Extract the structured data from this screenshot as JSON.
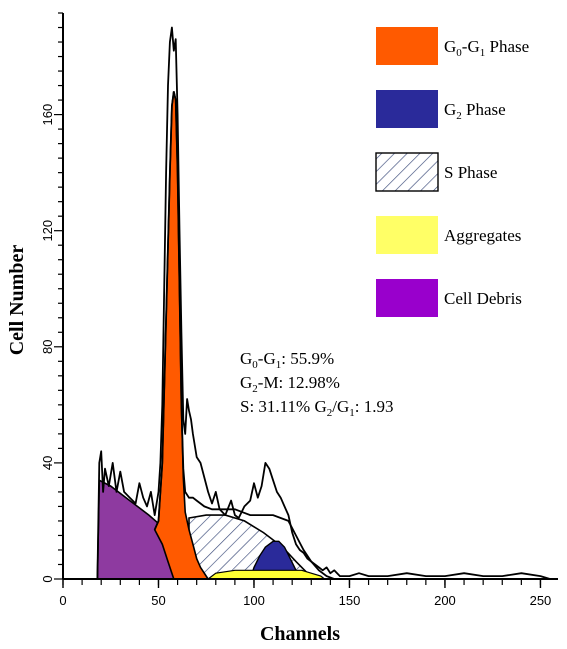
{
  "chart_data": {
    "type": "area",
    "xlabel": "Channels",
    "ylabel": "Cell Number",
    "xlim": [
      0,
      255
    ],
    "ylim": [
      0,
      195
    ],
    "xticks": [
      0,
      50,
      100,
      150,
      200,
      250
    ],
    "yticks": [
      0,
      40,
      80,
      120,
      160
    ],
    "colors": {
      "g0g1": "#ff5a00",
      "g2": "#2a2a9a",
      "s_phase_hatch": "#3a4a7a",
      "aggregates": "#ffff33",
      "cell_debris": "#9c27b8",
      "debris_fill": "#8e3aa0",
      "outline": "#000000"
    },
    "legend": [
      {
        "key": "g0g1",
        "label_main": "G",
        "sub1": "0",
        "mid": "-G",
        "sub2": "1",
        "tail": " Phase",
        "pattern": "solid",
        "color": "#ff5a00"
      },
      {
        "key": "g2",
        "label_main": "G",
        "sub1": "2",
        "mid": "",
        "sub2": "",
        "tail": " Phase",
        "pattern": "solid",
        "color": "#2a2a9a"
      },
      {
        "key": "s",
        "label_main": "S Phase",
        "sub1": "",
        "mid": "",
        "sub2": "",
        "tail": "",
        "pattern": "hatch",
        "color": "#ffffff"
      },
      {
        "key": "aggregates",
        "label_main": "Aggregates",
        "sub1": "",
        "mid": "",
        "sub2": "",
        "tail": "",
        "pattern": "solid",
        "color": "#ffff66"
      },
      {
        "key": "debris",
        "label_main": "Cell Debris",
        "sub1": "",
        "mid": "",
        "sub2": "",
        "tail": "",
        "pattern": "solid",
        "color": "#9900cc"
      }
    ],
    "stats": {
      "line1": {
        "a": "G",
        "s1": "0",
        "b": "-G",
        "s2": "1",
        "c": ": 55.9%"
      },
      "line2": {
        "a": "G",
        "s1": "2",
        "b": "-M: 12.98%"
      },
      "line3": {
        "a": "S: 31.11% G",
        "s1": "2",
        "b": "/G",
        "s2": "1",
        "c": ": 1.93"
      }
    },
    "series": [
      {
        "name": "Cell Debris",
        "points": [
          [
            18,
            0
          ],
          [
            19,
            34
          ],
          [
            25,
            32
          ],
          [
            35,
            27
          ],
          [
            45,
            22
          ],
          [
            52,
            18
          ],
          [
            58,
            14
          ],
          [
            65,
            10
          ],
          [
            72,
            7
          ],
          [
            80,
            4
          ],
          [
            90,
            2
          ],
          [
            100,
            0
          ]
        ]
      },
      {
        "name": "G0-G1 Phase",
        "points": [
          [
            48,
            17
          ],
          [
            50,
            20
          ],
          [
            52,
            40
          ],
          [
            54,
            90
          ],
          [
            56,
            140
          ],
          [
            57,
            163
          ],
          [
            58,
            168
          ],
          [
            59,
            165
          ],
          [
            60,
            140
          ],
          [
            61,
            100
          ],
          [
            62,
            60
          ],
          [
            63,
            35
          ],
          [
            64,
            23
          ],
          [
            66,
            17
          ],
          [
            68,
            12
          ],
          [
            70,
            7
          ],
          [
            72,
            4
          ],
          [
            74,
            2
          ],
          [
            76,
            0
          ],
          [
            58,
            0
          ],
          [
            55,
            6
          ],
          [
            52,
            12
          ]
        ]
      },
      {
        "name": "S Phase",
        "points": [
          [
            66,
            21
          ],
          [
            75,
            22
          ],
          [
            85,
            22
          ],
          [
            95,
            20
          ],
          [
            105,
            16
          ],
          [
            115,
            11
          ],
          [
            122,
            6
          ],
          [
            128,
            2
          ],
          [
            133,
            0
          ],
          [
            70,
            0
          ],
          [
            66,
            7
          ]
        ]
      },
      {
        "name": "G2 Phase",
        "points": [
          [
            98,
            0
          ],
          [
            100,
            4
          ],
          [
            103,
            8
          ],
          [
            106,
            11
          ],
          [
            110,
            13
          ],
          [
            113,
            13
          ],
          [
            116,
            11
          ],
          [
            119,
            7
          ],
          [
            122,
            3
          ],
          [
            124,
            0
          ]
        ]
      },
      {
        "name": "Aggregates",
        "points": [
          [
            76,
            0
          ],
          [
            80,
            2
          ],
          [
            90,
            3
          ],
          [
            110,
            3
          ],
          [
            125,
            3
          ],
          [
            135,
            1
          ],
          [
            137,
            0
          ]
        ]
      },
      {
        "name": "Histogram Outline",
        "points": [
          [
            0,
            0
          ],
          [
            18,
            0
          ],
          [
            19,
            40
          ],
          [
            20,
            44
          ],
          [
            21,
            30
          ],
          [
            22,
            38
          ],
          [
            24,
            32
          ],
          [
            26,
            40
          ],
          [
            28,
            30
          ],
          [
            30,
            37
          ],
          [
            32,
            30
          ],
          [
            35,
            28
          ],
          [
            38,
            26
          ],
          [
            40,
            33
          ],
          [
            42,
            28
          ],
          [
            44,
            25
          ],
          [
            46,
            30
          ],
          [
            48,
            22
          ],
          [
            50,
            30
          ],
          [
            51,
            40
          ],
          [
            52,
            60
          ],
          [
            53,
            100
          ],
          [
            54,
            140
          ],
          [
            55,
            170
          ],
          [
            56,
            185
          ],
          [
            57,
            190
          ],
          [
            58,
            182
          ],
          [
            59,
            186
          ],
          [
            60,
            160
          ],
          [
            61,
            120
          ],
          [
            62,
            85
          ],
          [
            63,
            55
          ],
          [
            64,
            50
          ],
          [
            65,
            62
          ],
          [
            66,
            58
          ],
          [
            67,
            55
          ],
          [
            68,
            50
          ],
          [
            70,
            42
          ],
          [
            72,
            40
          ],
          [
            74,
            35
          ],
          [
            76,
            30
          ],
          [
            78,
            26
          ],
          [
            80,
            30
          ],
          [
            82,
            24
          ],
          [
            85,
            22
          ],
          [
            88,
            27
          ],
          [
            90,
            22
          ],
          [
            92,
            21
          ],
          [
            95,
            25
          ],
          [
            98,
            27
          ],
          [
            100,
            33
          ],
          [
            102,
            28
          ],
          [
            104,
            32
          ],
          [
            105,
            36
          ],
          [
            106,
            40
          ],
          [
            108,
            38
          ],
          [
            110,
            34
          ],
          [
            112,
            30
          ],
          [
            114,
            28
          ],
          [
            116,
            25
          ],
          [
            118,
            22
          ],
          [
            120,
            16
          ],
          [
            122,
            12
          ],
          [
            124,
            10
          ],
          [
            126,
            9
          ],
          [
            128,
            7
          ],
          [
            130,
            6
          ],
          [
            132,
            5
          ],
          [
            134,
            4
          ],
          [
            136,
            3
          ],
          [
            138,
            4
          ],
          [
            140,
            2
          ],
          [
            142,
            3
          ],
          [
            145,
            1
          ],
          [
            150,
            1
          ],
          [
            155,
            2
          ],
          [
            160,
            1
          ],
          [
            170,
            1
          ],
          [
            180,
            2
          ],
          [
            190,
            1
          ],
          [
            200,
            1
          ],
          [
            210,
            2
          ],
          [
            220,
            1
          ],
          [
            230,
            1
          ],
          [
            240,
            2
          ],
          [
            250,
            1
          ],
          [
            255,
            0
          ]
        ]
      },
      {
        "name": "Fit Curve",
        "points": [
          [
            48,
            17
          ],
          [
            50,
            20
          ],
          [
            52,
            40
          ],
          [
            54,
            90
          ],
          [
            56,
            140
          ],
          [
            57,
            163
          ],
          [
            58,
            168
          ],
          [
            59,
            165
          ],
          [
            60,
            140
          ],
          [
            61,
            100
          ],
          [
            62,
            60
          ],
          [
            63,
            38
          ],
          [
            64,
            30
          ],
          [
            66,
            28
          ],
          [
            68,
            28
          ],
          [
            70,
            27
          ],
          [
            72,
            26
          ],
          [
            74,
            25
          ],
          [
            78,
            24
          ],
          [
            82,
            24
          ],
          [
            86,
            24
          ],
          [
            90,
            24
          ],
          [
            94,
            23
          ],
          [
            98,
            22
          ],
          [
            102,
            22
          ],
          [
            106,
            22
          ],
          [
            110,
            22
          ],
          [
            114,
            21
          ],
          [
            118,
            20
          ],
          [
            122,
            15
          ],
          [
            126,
            10
          ],
          [
            130,
            6
          ],
          [
            134,
            3
          ],
          [
            138,
            1
          ],
          [
            142,
            0
          ]
        ]
      }
    ]
  }
}
